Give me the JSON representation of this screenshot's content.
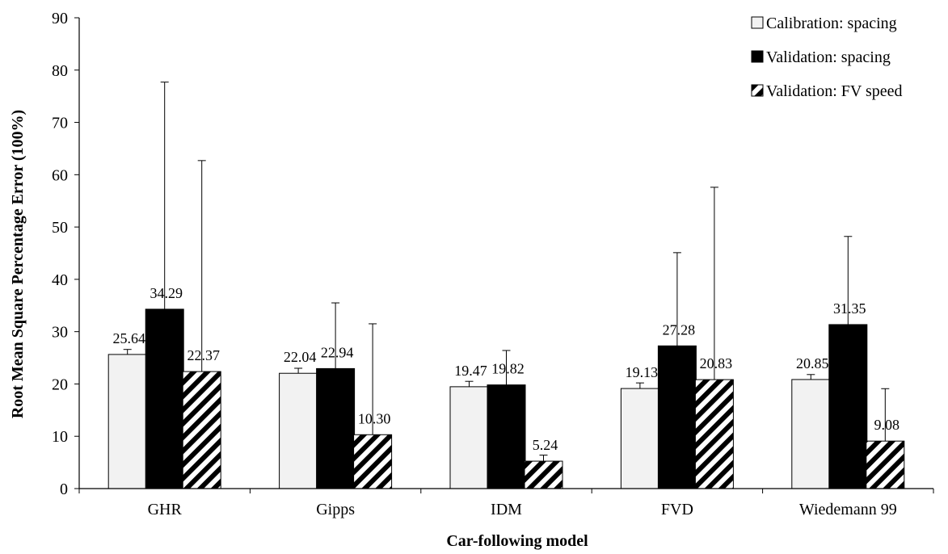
{
  "chart_data": {
    "type": "bar",
    "xlabel": "Car-following model",
    "ylabel": "Root Mean Square Percentage Error (100%)",
    "ylim": [
      0,
      90
    ],
    "yticks": [
      0,
      10,
      20,
      30,
      40,
      50,
      60,
      70,
      80,
      90
    ],
    "grid": false,
    "legend_position": "top-right",
    "categories": [
      "GHR",
      "Gipps",
      "IDM",
      "FVD",
      "Wiedemann 99"
    ],
    "series": [
      {
        "name": "Calibration: spacing",
        "fill": "#f2f2f2",
        "pattern": "solid-light",
        "values": [
          25.64,
          22.04,
          19.47,
          19.13,
          20.85
        ],
        "labels": [
          "25.64",
          "22.04",
          "19.47",
          "19.13",
          "20.85"
        ],
        "error": [
          26.6,
          23.0,
          20.5,
          20.2,
          21.8
        ]
      },
      {
        "name": "Validation: spacing",
        "fill": "#000000",
        "pattern": "solid-dark",
        "values": [
          34.29,
          22.94,
          19.82,
          27.28,
          31.35
        ],
        "labels": [
          "34.29",
          "22.94",
          "19.82",
          "27.28",
          "31.35"
        ],
        "error": [
          77.7,
          35.5,
          26.4,
          45.1,
          48.2
        ]
      },
      {
        "name": "Validation: FV speed",
        "fill": "#ffffff",
        "pattern": "diagonal-stripes",
        "values": [
          22.37,
          10.3,
          5.24,
          20.83,
          9.08
        ],
        "labels": [
          "22.37",
          "10.30",
          "5.24",
          "20.83",
          "9.08"
        ],
        "error": [
          62.7,
          31.5,
          6.4,
          57.6,
          19.1
        ]
      }
    ]
  }
}
